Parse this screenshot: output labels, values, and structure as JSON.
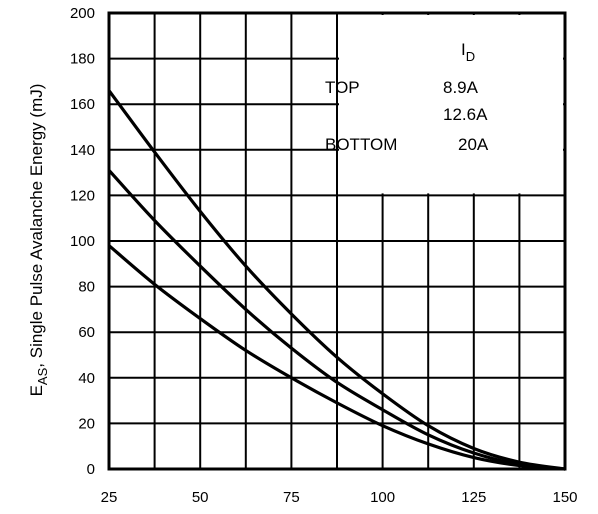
{
  "chart_data": {
    "type": "line",
    "title": "",
    "xlabel": "",
    "ylabel": "E",
    "ylabel_sub": "AS",
    "ylabel_rest": ", Single Pulse Avalanche Energy (mJ)",
    "xlim": [
      25,
      150
    ],
    "ylim": [
      0,
      200
    ],
    "x_ticks": [
      "25",
      "50",
      "75",
      "100",
      "125",
      "150"
    ],
    "y_ticks": [
      "0",
      "20",
      "40",
      "60",
      "80",
      "100",
      "120",
      "140",
      "160",
      "180",
      "200"
    ],
    "grid": true,
    "legend": {
      "placement": "top-right",
      "header_main": "I",
      "header_sub": "D",
      "rows": [
        {
          "label": "TOP",
          "value": "8.9A"
        },
        {
          "label": "",
          "value": "12.6A"
        },
        {
          "label": "BOTTOM",
          "value": "20A"
        }
      ]
    },
    "series": [
      {
        "x": [
          25,
          37.5,
          50,
          62.5,
          75,
          87.5,
          100,
          112.5,
          125,
          137.5,
          150
        ],
        "values": [
          166,
          139,
          113,
          89,
          68,
          49,
          33,
          19,
          9,
          3,
          0
        ]
      },
      {
        "x": [
          25,
          37.5,
          50,
          62.5,
          75,
          87.5,
          100,
          112.5,
          125,
          137.5,
          150
        ],
        "values": [
          131,
          109,
          89,
          70,
          53,
          38,
          26,
          15,
          7,
          2,
          0
        ]
      },
      {
        "x": [
          25,
          37.5,
          50,
          62.5,
          75,
          87.5,
          100,
          112.5,
          125,
          137.5,
          150
        ],
        "values": [
          98,
          81,
          66,
          52,
          40,
          29,
          19,
          11,
          5,
          1.5,
          0
        ]
      }
    ],
    "colors": {
      "line": "#000000",
      "grid": "#000000",
      "background": "#ffffff"
    }
  }
}
